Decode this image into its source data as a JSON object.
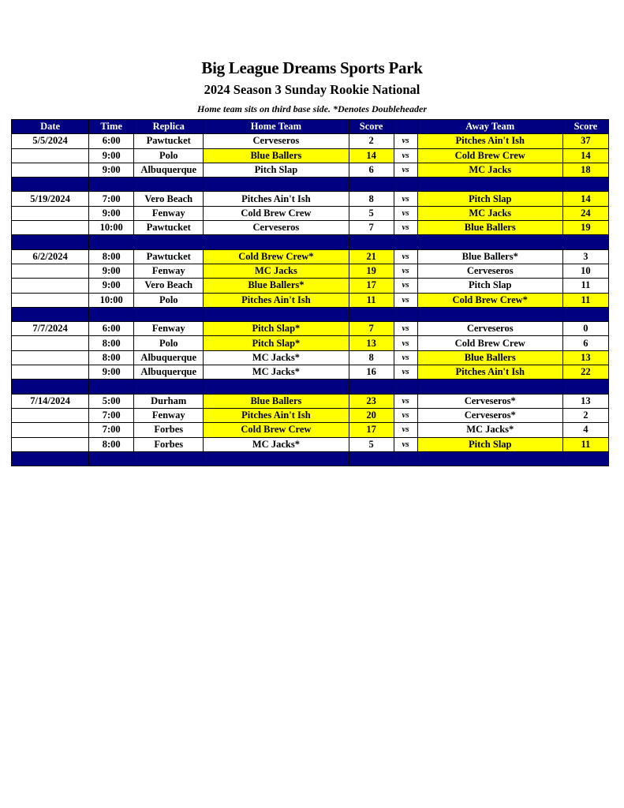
{
  "title": "Big League Dreams Sports Park",
  "subtitle": "2024 Season 3 Sunday Rookie National",
  "note": "Home team sits on third base side.  *Denotes Doubleheader",
  "colors": {
    "header": "#000080",
    "winner_highlight": "#ffff00"
  },
  "columns": [
    "Date",
    "Time",
    "Replica",
    "Home Team",
    "Score",
    "",
    "Away Team",
    "Score"
  ],
  "vs_label": "vs",
  "dates": [
    {
      "date": "5/5/2024",
      "games": [
        {
          "time": "6:00",
          "replica": "Pawtucket",
          "home": "Cerveseros",
          "home_score": "2",
          "away": "Pitches Ain't Ish",
          "away_score": "37",
          "home_hl": false,
          "away_hl": true
        },
        {
          "time": "9:00",
          "replica": "Polo",
          "home": "Blue Ballers",
          "home_score": "14",
          "away": "Cold Brew Crew",
          "away_score": "14",
          "home_hl": true,
          "away_hl": true
        },
        {
          "time": "9:00",
          "replica": "Albuquerque",
          "home": "Pitch Slap",
          "home_score": "6",
          "away": "MC Jacks",
          "away_score": "18",
          "home_hl": false,
          "away_hl": true
        }
      ]
    },
    {
      "date": "5/19/2024",
      "games": [
        {
          "time": "7:00",
          "replica": "Vero Beach",
          "home": "Pitches Ain't Ish",
          "home_score": "8",
          "away": "Pitch Slap",
          "away_score": "14",
          "home_hl": false,
          "away_hl": true
        },
        {
          "time": "9:00",
          "replica": "Fenway",
          "home": "Cold Brew Crew",
          "home_score": "5",
          "away": "MC Jacks",
          "away_score": "24",
          "home_hl": false,
          "away_hl": true
        },
        {
          "time": "10:00",
          "replica": "Pawtucket",
          "home": "Cerveseros",
          "home_score": "7",
          "away": "Blue Ballers",
          "away_score": "19",
          "home_hl": false,
          "away_hl": true
        }
      ]
    },
    {
      "date": "6/2/2024",
      "games": [
        {
          "time": "8:00",
          "replica": "Pawtucket",
          "home": "Cold Brew Crew*",
          "home_score": "21",
          "away": "Blue Ballers*",
          "away_score": "3",
          "home_hl": true,
          "away_hl": false
        },
        {
          "time": "9:00",
          "replica": "Fenway",
          "home": "MC Jacks",
          "home_score": "19",
          "away": "Cerveseros",
          "away_score": "10",
          "home_hl": true,
          "away_hl": false
        },
        {
          "time": "9:00",
          "replica": "Vero Beach",
          "home": "Blue Ballers*",
          "home_score": "17",
          "away": "Pitch Slap",
          "away_score": "11",
          "home_hl": true,
          "away_hl": false
        },
        {
          "time": "10:00",
          "replica": "Polo",
          "home": "Pitches Ain't Ish",
          "home_score": "11",
          "away": "Cold Brew Crew*",
          "away_score": "11",
          "home_hl": true,
          "away_hl": true
        }
      ]
    },
    {
      "date": "7/7/2024",
      "games": [
        {
          "time": "6:00",
          "replica": "Fenway",
          "home": "Pitch Slap*",
          "home_score": "7",
          "away": "Cerveseros",
          "away_score": "0",
          "home_hl": true,
          "away_hl": false
        },
        {
          "time": "8:00",
          "replica": "Polo",
          "home": "Pitch Slap*",
          "home_score": "13",
          "away": "Cold Brew Crew",
          "away_score": "6",
          "home_hl": true,
          "away_hl": false
        },
        {
          "time": "8:00",
          "replica": "Albuquerque",
          "home": "MC Jacks*",
          "home_score": "8",
          "away": "Blue Ballers",
          "away_score": "13",
          "home_hl": false,
          "away_hl": true
        },
        {
          "time": "9:00",
          "replica": "Albuquerque",
          "home": "MC Jacks*",
          "home_score": "16",
          "away": "Pitches Ain't Ish",
          "away_score": "22",
          "home_hl": false,
          "away_hl": true
        }
      ]
    },
    {
      "date": "7/14/2024",
      "games": [
        {
          "time": "5:00",
          "replica": "Durham",
          "home": "Blue Ballers",
          "home_score": "23",
          "away": "Cerveseros*",
          "away_score": "13",
          "home_hl": true,
          "away_hl": false
        },
        {
          "time": "7:00",
          "replica": "Fenway",
          "home": "Pitches Ain't Ish",
          "home_score": "20",
          "away": "Cerveseros*",
          "away_score": "2",
          "home_hl": true,
          "away_hl": false
        },
        {
          "time": "7:00",
          "replica": "Forbes",
          "home": "Cold Brew Crew",
          "home_score": "17",
          "away": "MC Jacks*",
          "away_score": "4",
          "home_hl": true,
          "away_hl": false
        },
        {
          "time": "8:00",
          "replica": "Forbes",
          "home": "MC Jacks*",
          "home_score": "5",
          "away": "Pitch Slap",
          "away_score": "11",
          "home_hl": false,
          "away_hl": true
        }
      ]
    }
  ]
}
